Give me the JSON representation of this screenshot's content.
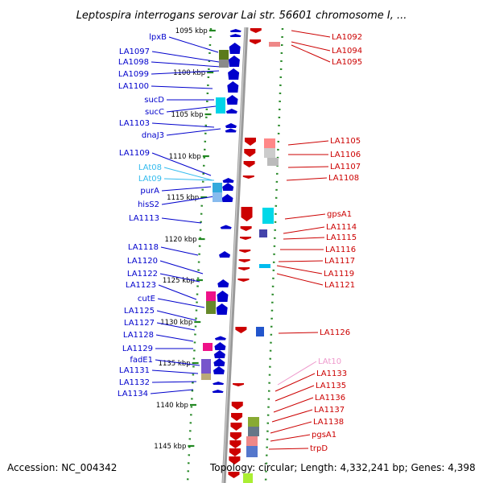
{
  "title": "Leptospira interrogans serovar Lai str. 56601 chromosome I, ...",
  "accession": "Accession: NC_004342",
  "topology": "Topology: circular; Length: 4,332,241 bp; Genes: 4,398",
  "colors": {
    "forward_strand": "#0000cc",
    "reverse_strand": "#cc0000",
    "trna_label": "#33bbee",
    "rna_label": "#ee99cc",
    "ruler_tick": "#228822"
  },
  "ruler_ticks": [
    "1095 kbp",
    "1100 kbp",
    "1105 kbp",
    "1110 kbp",
    "1115 kbp",
    "1120 kbp",
    "1125 kbp",
    "1130 kbp",
    "1135 kbp",
    "1140 kbp",
    "1145 kbp"
  ],
  "left_labels": [
    "lpxB",
    "LA1097",
    "LA1098",
    "LA1099",
    "LA1100",
    "sucD",
    "sucC",
    "LA1103",
    "dnaJ3",
    "LA1109",
    "LAt08",
    "LAt09",
    "purA",
    "hisS2",
    "LA1113",
    "LA1118",
    "LA1120",
    "LA1122",
    "LA1123",
    "cutE",
    "LA1125",
    "LA1127",
    "LA1128",
    "LA1129",
    "fadE1",
    "LA1131",
    "LA1132",
    "LA1134"
  ],
  "right_labels": [
    "LA1092",
    "LA1094",
    "LA1095",
    "LA1105",
    "LA1106",
    "LA1107",
    "LA1108",
    "gpsA1",
    "LA1114",
    "LA1115",
    "LA1116",
    "LA1117",
    "LA1119",
    "LA1121",
    "LA1126",
    "LAt10",
    "LA1133",
    "LA1135",
    "LA1136",
    "LA1137",
    "LA1138",
    "pgsA1",
    "trpD"
  ]
}
